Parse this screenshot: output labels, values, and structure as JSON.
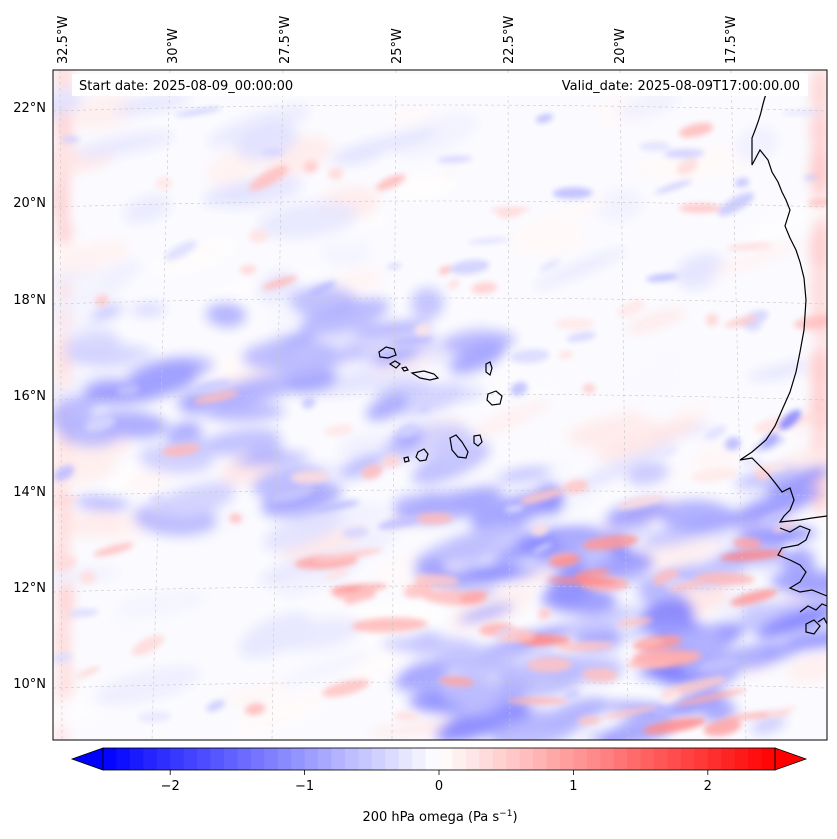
{
  "map": {
    "start_date_label": "Start date: 2025-08-09_00:00:00",
    "valid_date_label": "Valid_date: 2025-08-09T17:00:00.00",
    "lon_labels": [
      "32.5°W",
      "30°W",
      "27.5°W",
      "25°W",
      "22.5°W",
      "20°W",
      "17.5°W"
    ],
    "lat_labels": [
      "22°N",
      "20°N",
      "18°N",
      "16°N",
      "14°N",
      "12°N",
      "10°N"
    ],
    "colorbar": {
      "label": "200 hPa omega (Pa s",
      "label_exponent": "−1",
      "label_suffix": ")",
      "ticks": [
        "−2",
        "−1",
        "0",
        "1",
        "2"
      ],
      "tick_values": [
        -2,
        -1,
        0,
        1,
        2
      ],
      "vmin": -2.5,
      "vmax": 2.5,
      "extend": "both",
      "colormap": "bwr"
    },
    "colors": {
      "negative": "#0000ff",
      "zero": "#ffffff",
      "positive": "#ff0000",
      "coastline": "#000000",
      "gridline": "#c8c8c8"
    }
  }
}
